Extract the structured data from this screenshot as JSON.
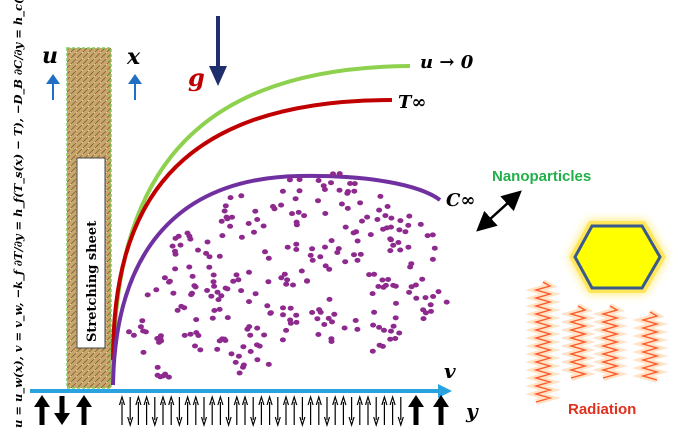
{
  "labels": {
    "stretching_sheet": "Stretching sheet",
    "nanoparticles": "Nanoparticles",
    "radiation": "Radiation",
    "u_axis": "u",
    "x_axis": "x",
    "gravity": "g",
    "v_axis": "v",
    "y_axis": "y",
    "velocity_curve": "u → 0",
    "temperature_curve": "T∞",
    "concentration_curve": "C∞",
    "boundary_conditions": "u = u_w(x), v = v_w,   −k_f ∂T/∂y = h_f(T_s(x) − T),   −D_B ∂C/∂y = h_c(C_s(x) − C)"
  },
  "colors": {
    "velocity": "#8dd14e",
    "temperature": "#c00000",
    "concentration": "#7030a0",
    "particles": "#8e2a8e",
    "arrow_blue": "#1f6fc4",
    "gravity_arrow": "#1f2f6e",
    "nanoparticles_text": "#22b04a",
    "radiation_text": "#e0301e",
    "radiation_wave": "#ff5a2a",
    "hexagon_fill": "#ffff00",
    "hexagon_stroke": "#3a5a8c"
  }
}
